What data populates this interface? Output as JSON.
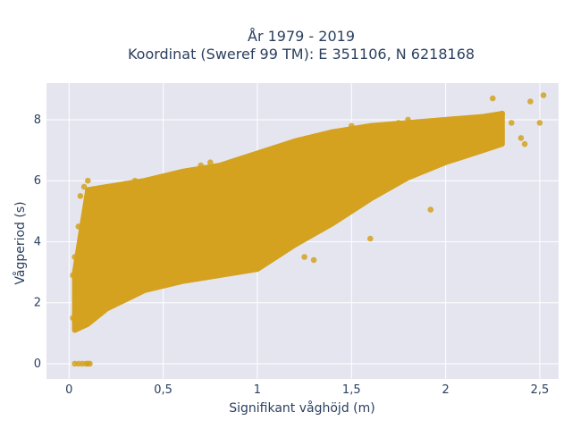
{
  "chart_data": {
    "type": "scatter",
    "title_line1": "År 1979 - 2019",
    "title_line2": "Koordinat (Sweref 99 TM): E 351106, N 6218168",
    "xlabel": "Signifikant våghöjd (m)",
    "ylabel": "Vågperiod (s)",
    "xlim": [
      -0.12,
      2.6
    ],
    "ylim": [
      -0.5,
      9.2
    ],
    "xticks": [
      0,
      0.5,
      1,
      1.5,
      2,
      2.5
    ],
    "xtick_labels": [
      "0",
      "0,5",
      "1",
      "1,5",
      "2",
      "2,5"
    ],
    "yticks": [
      0,
      2,
      4,
      6,
      8
    ],
    "ytick_labels": [
      "0",
      "2",
      "4",
      "6",
      "8"
    ],
    "grid": true,
    "marker_color": "#D4A21E",
    "background_color": "#E5E5F0",
    "series": [
      {
        "name": "",
        "points": [
          [
            0.03,
            0.0
          ],
          [
            0.05,
            0.0
          ],
          [
            0.07,
            0.0
          ],
          [
            0.09,
            0.0
          ],
          [
            0.1,
            0.0
          ],
          [
            0.11,
            0.0
          ],
          [
            0.02,
            1.5
          ],
          [
            0.02,
            2.9
          ],
          [
            0.03,
            3.5
          ],
          [
            0.05,
            4.5
          ],
          [
            0.06,
            5.5
          ],
          [
            0.08,
            5.8
          ],
          [
            0.1,
            6.0
          ],
          [
            0.12,
            5.0
          ],
          [
            0.15,
            4.0
          ],
          [
            0.2,
            4.5
          ],
          [
            0.25,
            5.8
          ],
          [
            0.3,
            5.9
          ],
          [
            0.35,
            6.0
          ],
          [
            0.4,
            4.2
          ],
          [
            0.45,
            3.4
          ],
          [
            0.5,
            3.0
          ],
          [
            0.55,
            3.0
          ],
          [
            0.6,
            5.5
          ],
          [
            0.65,
            6.2
          ],
          [
            0.7,
            6.5
          ],
          [
            0.75,
            6.6
          ],
          [
            0.8,
            4.6
          ],
          [
            0.85,
            3.7
          ],
          [
            0.9,
            3.4
          ],
          [
            0.95,
            5.0
          ],
          [
            1.0,
            6.5
          ],
          [
            1.05,
            6.8
          ],
          [
            1.1,
            7.0
          ],
          [
            1.15,
            5.0
          ],
          [
            1.2,
            4.2
          ],
          [
            1.25,
            3.5
          ],
          [
            1.3,
            3.4
          ],
          [
            1.35,
            5.8
          ],
          [
            1.4,
            7.2
          ],
          [
            1.45,
            7.5
          ],
          [
            1.5,
            7.8
          ],
          [
            1.55,
            6.0
          ],
          [
            1.6,
            4.1
          ],
          [
            1.65,
            6.6
          ],
          [
            1.7,
            7.5
          ],
          [
            1.75,
            7.9
          ],
          [
            1.8,
            8.0
          ],
          [
            1.85,
            7.0
          ],
          [
            1.9,
            6.5
          ],
          [
            1.95,
            7.6
          ],
          [
            2.0,
            7.8
          ],
          [
            2.05,
            8.0
          ],
          [
            2.1,
            7.5
          ],
          [
            2.15,
            7.4
          ],
          [
            2.2,
            8.0
          ],
          [
            2.25,
            8.7
          ],
          [
            2.3,
            8.2
          ],
          [
            2.35,
            7.9
          ],
          [
            2.4,
            7.4
          ],
          [
            2.42,
            7.2
          ],
          [
            2.45,
            8.6
          ],
          [
            2.5,
            7.9
          ],
          [
            2.52,
            8.8
          ],
          [
            1.92,
            5.05
          ],
          [
            1.3,
            6.6
          ],
          [
            1.5,
            6.8
          ],
          [
            1.6,
            7.3
          ],
          [
            1.7,
            7.0
          ],
          [
            1.8,
            7.2
          ],
          [
            1.25,
            5.6
          ],
          [
            1.4,
            6.4
          ]
        ]
      }
    ],
    "density_band": {
      "x_min": 0.03,
      "x_max": 2.3,
      "lower": [
        [
          0.03,
          1.1
        ],
        [
          0.1,
          1.3
        ],
        [
          0.2,
          1.8
        ],
        [
          0.3,
          2.1
        ],
        [
          0.4,
          2.4
        ],
        [
          0.6,
          2.7
        ],
        [
          0.8,
          2.9
        ],
        [
          1.0,
          3.1
        ],
        [
          1.2,
          3.9
        ],
        [
          1.4,
          4.6
        ],
        [
          1.6,
          5.4
        ],
        [
          1.8,
          6.1
        ],
        [
          2.0,
          6.6
        ],
        [
          2.2,
          7.0
        ],
        [
          2.3,
          7.2
        ]
      ],
      "upper": [
        [
          0.03,
          3.0
        ],
        [
          0.1,
          5.7
        ],
        [
          0.2,
          5.8
        ],
        [
          0.3,
          5.9
        ],
        [
          0.4,
          6.0
        ],
        [
          0.6,
          6.3
        ],
        [
          0.8,
          6.5
        ],
        [
          1.0,
          6.9
        ],
        [
          1.2,
          7.3
        ],
        [
          1.4,
          7.6
        ],
        [
          1.6,
          7.8
        ],
        [
          1.8,
          7.9
        ],
        [
          2.0,
          8.0
        ],
        [
          2.2,
          8.1
        ],
        [
          2.3,
          8.2
        ]
      ]
    }
  }
}
